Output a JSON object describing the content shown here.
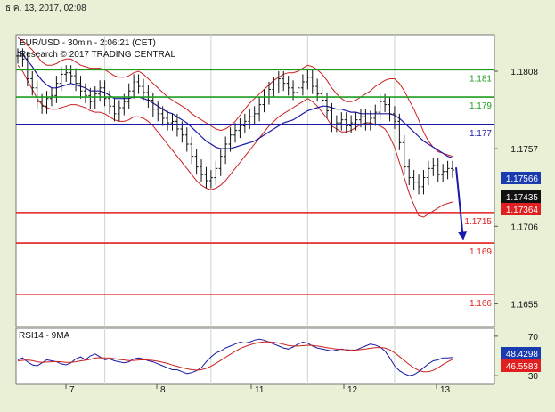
{
  "header": {
    "date": "ธ.ค. 13, 2017, 02:08"
  },
  "chart_data": [
    {
      "type": "line",
      "title": "EUR/USD - 30min - 2:06:21 (CET)",
      "subtitle": "Research © 2017 TRADING CENTRAL",
      "x_tick_labels": [
        "7",
        "8",
        "11",
        "12",
        "13"
      ],
      "y_tick_labels": [
        "1.1808",
        "1.1757",
        "1.1706",
        "1.1655"
      ],
      "ylim": [
        1.164,
        1.1832
      ],
      "levels": [
        {
          "label": "1.181",
          "value": 1.1809,
          "color": "#1e9b1e"
        },
        {
          "label": "1.179",
          "value": 1.1791,
          "color": "#1e9b1e"
        },
        {
          "label": "1.177",
          "value": 1.1773,
          "color": "#1a1aa8"
        },
        {
          "label": "1.1715",
          "value": 1.1715,
          "color": "#e02020"
        },
        {
          "label": "1.169",
          "value": 1.1695,
          "color": "#e02020"
        },
        {
          "label": "1.166",
          "value": 1.1661,
          "color": "#e02020"
        }
      ],
      "price_badges": [
        {
          "label": "1.17566",
          "value": 1.17566,
          "color": "#1a3ab0"
        },
        {
          "label": "1.17435",
          "value": 1.17435,
          "color": "#111111"
        },
        {
          "label": "1.17364",
          "value": 1.17364,
          "color": "#e02020"
        }
      ],
      "series": [
        {
          "values": [
            1.1818,
            1.1816,
            1.1803,
            1.1797,
            1.1788,
            1.1785,
            1.179,
            1.1792,
            1.18,
            1.1806,
            1.1807,
            1.1805,
            1.18,
            1.1795,
            1.1792,
            1.1788,
            1.1793,
            1.1797,
            1.179,
            1.1785,
            1.178,
            1.1784,
            1.1788,
            1.1795,
            1.1801,
            1.1798,
            1.1794,
            1.1789,
            1.1783,
            1.178,
            1.1777,
            1.1774,
            1.1775,
            1.177,
            1.1766,
            1.176,
            1.1752,
            1.1745,
            1.174,
            1.1736,
            1.1738,
            1.1744,
            1.1752,
            1.176,
            1.1766,
            1.1769,
            1.1772,
            1.1775,
            1.1778,
            1.178,
            1.1786,
            1.1791,
            1.1796,
            1.1799,
            1.1803,
            1.18,
            1.1797,
            1.1794,
            1.1797,
            1.1801,
            1.1804,
            1.1798,
            1.1793,
            1.1789,
            1.1782,
            1.1773,
            1.1774,
            1.1776,
            1.1772,
            1.1774,
            1.1776,
            1.1778,
            1.1774,
            1.1777,
            1.1781,
            1.1788,
            1.1786,
            1.178,
            1.1775,
            1.1761,
            1.1745,
            1.1738,
            1.1735,
            1.1732,
            1.1738,
            1.1744,
            1.1746,
            1.174,
            1.1742,
            1.1744,
            1.1743
          ]
        },
        {
          "values": [
            1.1821,
            1.1819,
            1.1815,
            1.1811,
            1.1806,
            1.1802,
            1.1799,
            1.1797,
            1.1797,
            1.1798,
            1.1799,
            1.18,
            1.1799,
            1.1798,
            1.1797,
            1.1795,
            1.1795,
            1.1795,
            1.1794,
            1.1792,
            1.179,
            1.179,
            1.179,
            1.179,
            1.1791,
            1.1791,
            1.179,
            1.1789,
            1.1787,
            1.1785,
            1.1783,
            1.1781,
            1.178,
            1.1778,
            1.1776,
            1.1774,
            1.1771,
            1.1768,
            1.1765,
            1.1762,
            1.176,
            1.1758,
            1.1757,
            1.1757,
            1.1757,
            1.1758,
            1.1759,
            1.176,
            1.1761,
            1.1762,
            1.1764,
            1.1766,
            1.1768,
            1.177,
            1.1772,
            1.1774,
            1.1775,
            1.1776,
            1.1778,
            1.178,
            1.1782,
            1.1783,
            1.1784,
            1.1785,
            1.1785,
            1.1784,
            1.1783,
            1.1783,
            1.1782,
            1.1781,
            1.1781,
            1.178,
            1.178,
            1.178,
            1.178,
            1.178,
            1.178,
            1.178,
            1.1779,
            1.1777,
            1.1774,
            1.1771,
            1.1768,
            1.1765,
            1.1762,
            1.176,
            1.1758,
            1.1756,
            1.1754,
            1.1752,
            1.1751
          ]
        }
      ],
      "bands": {
        "upper": [
          1.183,
          1.1828,
          1.1825,
          1.1822,
          1.1818,
          1.1814,
          1.1812,
          1.1812,
          1.1813,
          1.1815,
          1.1816,
          1.1816,
          1.1814,
          1.1812,
          1.1811,
          1.181,
          1.181,
          1.181,
          1.1809,
          1.1807,
          1.1805,
          1.1804,
          1.1804,
          1.1805,
          1.1807,
          1.1808,
          1.1806,
          1.1803,
          1.18,
          1.1797,
          1.1794,
          1.1791,
          1.1789,
          1.1787,
          1.1785,
          1.1783,
          1.178,
          1.1778,
          1.1776,
          1.1774,
          1.1772,
          1.177,
          1.1769,
          1.177,
          1.1772,
          1.1775,
          1.1779,
          1.1783,
          1.1787,
          1.179,
          1.1793,
          1.1796,
          1.1799,
          1.1802,
          1.1804,
          1.1806,
          1.1807,
          1.1807,
          1.1808,
          1.181,
          1.1812,
          1.1811,
          1.1809,
          1.1806,
          1.1802,
          1.1797,
          1.1793,
          1.179,
          1.1788,
          1.1788,
          1.1789,
          1.1791,
          1.1793,
          1.1795,
          1.1798,
          1.18,
          1.1802,
          1.1803,
          1.1803,
          1.18,
          1.1795,
          1.1789,
          1.1783,
          1.1776,
          1.1768,
          1.1762,
          1.1758,
          1.1755,
          1.1754,
          1.1753,
          1.1752
        ],
        "lower": [
          1.1812,
          1.1808,
          1.1802,
          1.1796,
          1.179,
          1.1786,
          1.1784,
          1.1783,
          1.1783,
          1.1784,
          1.1785,
          1.1786,
          1.1786,
          1.1785,
          1.1784,
          1.1782,
          1.1781,
          1.1781,
          1.178,
          1.1778,
          1.1776,
          1.1775,
          1.1775,
          1.1776,
          1.1778,
          1.1778,
          1.1777,
          1.1775,
          1.1772,
          1.1768,
          1.1764,
          1.176,
          1.1756,
          1.1752,
          1.1748,
          1.1744,
          1.174,
          1.1736,
          1.1733,
          1.1731,
          1.173,
          1.1731,
          1.1733,
          1.1736,
          1.174,
          1.1744,
          1.1748,
          1.1752,
          1.1756,
          1.176,
          1.1764,
          1.1768,
          1.1772,
          1.1775,
          1.1778,
          1.178,
          1.1782,
          1.1784,
          1.1786,
          1.1788,
          1.179,
          1.1788,
          1.1785,
          1.1781,
          1.1777,
          1.1772,
          1.177,
          1.1768,
          1.1768,
          1.1769,
          1.1771,
          1.1773,
          1.1774,
          1.1774,
          1.1773,
          1.1772,
          1.177,
          1.1765,
          1.1758,
          1.1748,
          1.1738,
          1.1728,
          1.172,
          1.1713,
          1.1712,
          1.1714,
          1.1716,
          1.1718,
          1.172,
          1.1721,
          1.1722
        ]
      },
      "forecast_arrow": {
        "from_value": 1.17435,
        "to_value": 1.1697,
        "color": "#1a1aa8"
      }
    },
    {
      "type": "line",
      "title": "RSI14 - 9MA",
      "y_tick_labels": [
        "70",
        "30"
      ],
      "ylim": [
        22,
        78
      ],
      "badges": [
        {
          "label": "48.4298",
          "value": 48.43,
          "color": "#1a3ab0"
        },
        {
          "label": "46.5583",
          "value": 46.56,
          "color": "#e02020"
        }
      ],
      "series": [
        {
          "values": [
            46,
            48,
            44,
            41,
            40,
            43,
            46,
            45,
            44,
            42,
            41,
            43,
            47,
            49,
            46,
            50,
            52,
            49,
            46,
            47,
            45,
            44,
            43,
            44,
            47,
            48,
            47,
            45,
            44,
            42,
            40,
            38,
            36,
            36,
            34,
            32,
            33,
            35,
            38,
            44,
            49,
            53,
            55,
            58,
            60,
            62,
            64,
            63,
            64,
            66,
            67,
            66,
            64,
            62,
            60,
            58,
            57,
            59,
            62,
            64,
            63,
            60,
            58,
            57,
            56,
            55,
            56,
            57,
            56,
            55,
            56,
            58,
            60,
            62,
            61,
            59,
            55,
            48,
            40,
            35,
            32,
            30,
            31,
            34,
            38,
            42,
            45,
            46,
            48,
            48,
            48.43
          ]
        },
        {
          "values": [
            45,
            45.5,
            45.8,
            45.2,
            44,
            43.5,
            43.8,
            44,
            44.2,
            44,
            43.5,
            43.4,
            44,
            45,
            45.6,
            46.5,
            47.8,
            48.2,
            48,
            47.8,
            47.2,
            46.4,
            45.8,
            45.2,
            45.4,
            45.8,
            46,
            45.8,
            45.4,
            44.6,
            43.6,
            42.4,
            40.8,
            39.5,
            38,
            37,
            36,
            35.6,
            36,
            37.4,
            39.6,
            42.4,
            45.4,
            48.6,
            51.6,
            54.6,
            57.4,
            59.4,
            61.2,
            62.6,
            63.6,
            64.2,
            64.2,
            63.8,
            63,
            61.8,
            60.6,
            60,
            60,
            60.4,
            60.8,
            60.6,
            60,
            59.2,
            58.4,
            57.6,
            57,
            56.6,
            56.2,
            56,
            56,
            56.4,
            57,
            57.8,
            58.4,
            58.6,
            58,
            56.2,
            53.2,
            49.4,
            45.4,
            41.4,
            38,
            35.4,
            34,
            34,
            35.4,
            38,
            41.2,
            44,
            46.56
          ]
        }
      ]
    }
  ]
}
